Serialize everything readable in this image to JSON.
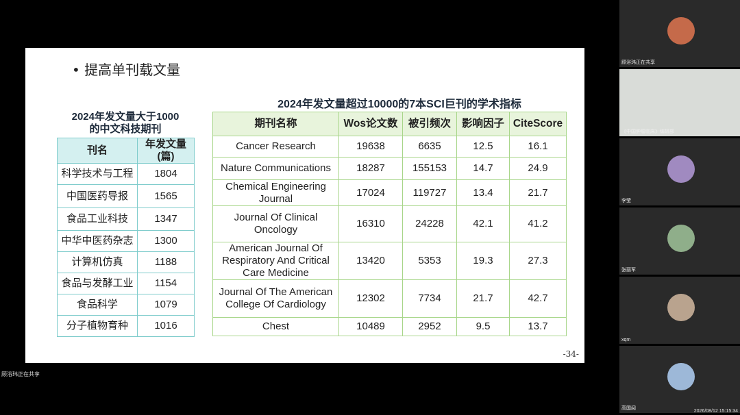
{
  "slide": {
    "bullet": "提高单刊载文量",
    "page_number": "-34-",
    "left_table": {
      "title": "2024年发文量大于1000\n的中文科技期刊",
      "headers": [
        "刊名",
        "年发文量\n(篇)"
      ],
      "rows": [
        [
          "科学技术与工程",
          "1804"
        ],
        [
          "中国医药导报",
          "1565"
        ],
        [
          "食品工业科技",
          "1347"
        ],
        [
          "中华中医药杂志",
          "1300"
        ],
        [
          "计算机仿真",
          "1188"
        ],
        [
          "食品与发酵工业",
          "1154"
        ],
        [
          "食品科学",
          "1079"
        ],
        [
          "分子植物育种",
          "1016"
        ]
      ]
    },
    "right_table": {
      "title": "2024年发文量超过10000的7本SCI巨刊的学术指标",
      "headers": [
        "期刊名称",
        "Wos论文数",
        "被引频次",
        "影响因子",
        "CiteScore"
      ],
      "rows": [
        [
          "Cancer Research",
          "19638",
          "6635",
          "12.5",
          "16.1"
        ],
        [
          "Nature Communications",
          "18287",
          "155153",
          "14.7",
          "24.9"
        ],
        [
          "Chemical Engineering Journal",
          "17024",
          "119727",
          "13.4",
          "21.7"
        ],
        [
          "Journal Of Clinical Oncology",
          "16310",
          "24228",
          "42.1",
          "41.2"
        ],
        [
          "American Journal Of Respiratory And Critical Care Medicine",
          "13420",
          "5353",
          "19.3",
          "27.3"
        ],
        [
          "Journal Of The American College Of Cardiology",
          "12302",
          "7734",
          "21.7",
          "42.7"
        ],
        [
          "Chest",
          "10489",
          "2952",
          "9.5",
          "13.7"
        ]
      ]
    }
  },
  "share_status": "顾浴玮正在共享",
  "participants": [
    "顾浴玮正在共享",
    "《中国肿瘤临床》编辑部",
    "李莹",
    "张丽军",
    "xqm",
    "高国阅"
  ],
  "timestamp": "2026/08/12 15:15:34"
}
